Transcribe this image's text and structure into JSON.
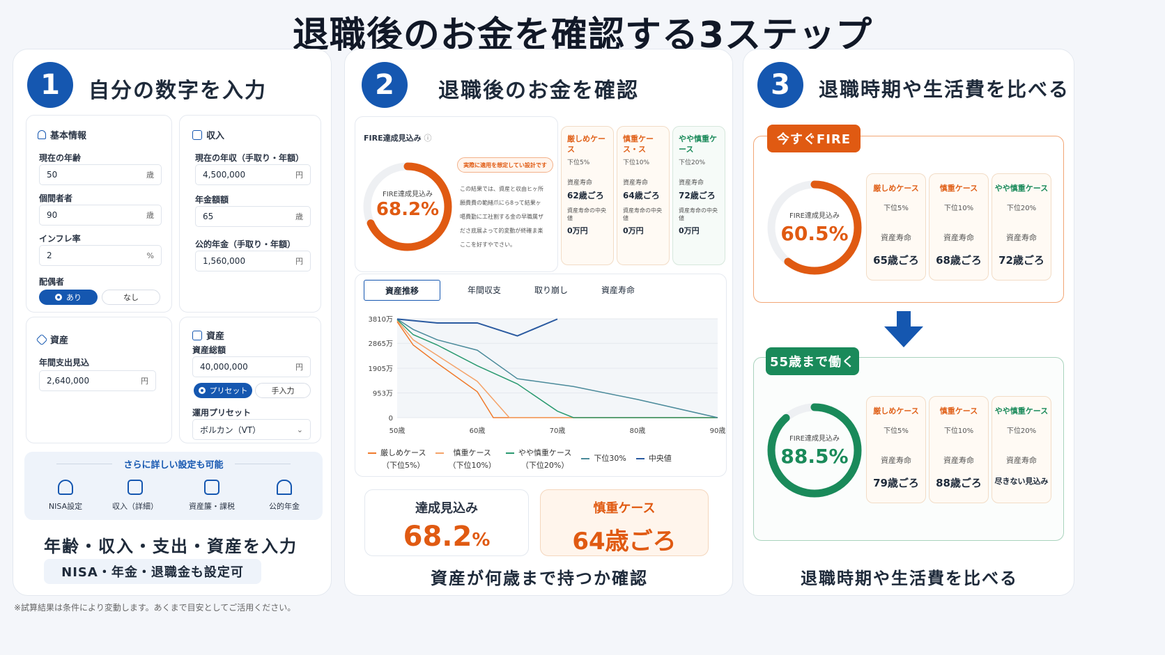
{
  "title": "退職後のお金を確認する3ステップ",
  "step1": {
    "num": "1",
    "title": "自分の数字を入力",
    "basic": {
      "header": "基本情報",
      "age_label": "現在の年齢",
      "age_value": "50",
      "age_unit": "歳",
      "life_label": "個間者者",
      "life_value": "90",
      "life_unit": "歳",
      "infl_label": "インフレ率",
      "infl_value": "2",
      "infl_unit": "%",
      "spouse_label": "配偶者",
      "spouse_on": "あり",
      "spouse_off": "なし"
    },
    "income": {
      "header": "収入",
      "annual_label": "現在の年収（手取り・年額）",
      "annual_value": "4,500,000",
      "annual_unit": "円",
      "pension_age_label": "年金額額",
      "pension_age_value": "65",
      "pension_age_unit": "歳",
      "pension_label": "公的年金（手取り・年額）",
      "pension_value": "1,560,000",
      "pension_unit": "円"
    },
    "expense": {
      "header": "資産",
      "label": "年間支出見込",
      "value": "2,640,000",
      "unit": "円"
    },
    "assets": {
      "header": "資産",
      "total_label": "資産総額",
      "total_value": "40,000,000",
      "total_unit": "円",
      "preset_on": "プリセット",
      "preset_off": "手入力",
      "preset_label": "運用プリセット",
      "preset_value": "ボルカン（VT）"
    },
    "advanced": {
      "title": "さらに詳しい設定も可能",
      "items": [
        "NISA設定",
        "収入（詳細）",
        "資産簾・課税",
        "公的年金"
      ]
    },
    "caption": "年齢・収入・支出・資産を入力",
    "subcaption": "NISA・年金・退職金も設定可"
  },
  "step2": {
    "num": "2",
    "title": "退職後のお金を確認",
    "fire_header": "FIRE達成見込み",
    "ring_label": "FIRE達成見込み",
    "ring_value": "68.2%",
    "ring_pct": 0.682,
    "note_title": "実際に適用を想定してい設計です",
    "note_lines": [
      "この結果では、資産と収由ヒヶ所",
      "願費費の範緒爪にら8って結果ヶ",
      "噶費勤に工社割する金の早職属ザ",
      "ださ底展よって的変動が終確ま楽",
      "ここを好すやでさい。"
    ],
    "cases": [
      {
        "name": "厳しめケース",
        "sub": "下位5%",
        "k1": "資産寿命",
        "v1": "62歳ごろ",
        "k2": "資産寿命の中央値",
        "v2": "0万円"
      },
      {
        "name": "慎重ケース・ス",
        "sub": "下位10%",
        "k1": "資産寿命",
        "v1": "64歳ごろ",
        "k2": "資産寿命の中央値",
        "v2": "0万円"
      },
      {
        "name": "やや慎重ケース",
        "sub": "下位20%",
        "k1": "資産寿命",
        "v1": "72歳ごろ",
        "k2": "資産寿命の中央値",
        "v2": "0万円"
      }
    ],
    "tabs": [
      "資産推移",
      "年間収支",
      "取り崩し",
      "資産寿命"
    ],
    "summary_a_label": "達成見込み",
    "summary_a_value": "68.2",
    "summary_a_unit": "%",
    "summary_b_label": "慎重ケース",
    "summary_b_value": "64歳ごろ",
    "caption": "資産が何歳まで持つか確認"
  },
  "chart_data": {
    "type": "line",
    "x": [
      50,
      52,
      55,
      60,
      65,
      70,
      75,
      80,
      85,
      90
    ],
    "yticks": [
      "3810万",
      "2865万",
      "1905万",
      "953万",
      "0"
    ],
    "ytick_values": [
      3810,
      2865,
      1905,
      953,
      0
    ],
    "xticks": [
      "50歳",
      "60歳",
      "70歳",
      "80歳",
      "90歳"
    ],
    "xtick_values": [
      50,
      60,
      70,
      80,
      90
    ],
    "xlim": [
      50,
      90
    ],
    "ylim": [
      0,
      3810
    ],
    "series": [
      {
        "name": "厳しめケース",
        "name2": "（下位5%）",
        "color": "#f07a2c",
        "x": [
          50,
          52,
          55,
          60,
          62,
          65,
          70,
          90
        ],
        "y": [
          3700,
          2800,
          2100,
          1000,
          0,
          0,
          0,
          0
        ]
      },
      {
        "name": "慎重ケース",
        "name2": "（下位10%）",
        "color": "#f4a36a",
        "x": [
          50,
          52,
          55,
          60,
          64,
          70,
          90
        ],
        "y": [
          3750,
          3000,
          2400,
          1400,
          0,
          0,
          0
        ]
      },
      {
        "name": "やや慎重ケース",
        "name2": "（下位20%）",
        "color": "#2a9a70",
        "x": [
          50,
          52,
          55,
          60,
          65,
          70,
          72,
          90
        ],
        "y": [
          3780,
          3200,
          2800,
          2000,
          1300,
          250,
          0,
          0
        ]
      },
      {
        "name": "下位30%",
        "name2": "",
        "color": "#4a8a9a",
        "x": [
          50,
          52,
          55,
          60,
          65,
          72,
          80,
          90
        ],
        "y": [
          3800,
          3400,
          3000,
          2600,
          1500,
          1200,
          700,
          0
        ]
      },
      {
        "name": "中央値",
        "name2": "",
        "color": "#2a5aa0",
        "x": [
          50,
          55,
          60,
          65,
          70
        ],
        "y": [
          3800,
          3650,
          3650,
          3150,
          3800
        ]
      }
    ]
  },
  "step3": {
    "num": "3",
    "title": "退職時期や生活費を比べる",
    "scenario_a": {
      "badge": "今すぐFIRE",
      "ring_label": "FIRE達成見込み",
      "ring_value": "60.5%",
      "ring_pct": 0.605,
      "cases": [
        {
          "name": "厳しめケース",
          "sub": "下位5%",
          "k": "資産寿命",
          "v": "65歳ごろ"
        },
        {
          "name": "慎重ケース",
          "sub": "下位10%",
          "k": "資産寿命",
          "v": "68歳ごろ"
        },
        {
          "name": "やや慎重ケース",
          "sub": "下位20%",
          "k": "資産寿命",
          "v": "72歳ごろ"
        }
      ]
    },
    "scenario_b": {
      "badge": "55歳まで働く",
      "ring_label": "FIRE達成見込み",
      "ring_value": "88.5%",
      "ring_pct": 0.885,
      "cases": [
        {
          "name": "厳しめケース",
          "sub": "下位5%",
          "k": "資産寿命",
          "v": "79歳ごろ"
        },
        {
          "name": "慎重ケース",
          "sub": "下位10%",
          "k": "資産寿命",
          "v": "88歳ごろ"
        },
        {
          "name": "やや慎重ケース",
          "sub": "下位20%",
          "k": "資産寿命",
          "v": "尽きない見込み"
        }
      ]
    },
    "caption": "退職時期や生活費を比べる"
  },
  "footer": "※試算結果は条件により変動します。あくまで目安としてご活用ください。",
  "colors": {
    "primary": "#1557b0",
    "orange": "#e0621b",
    "green": "#1a8a5a"
  }
}
